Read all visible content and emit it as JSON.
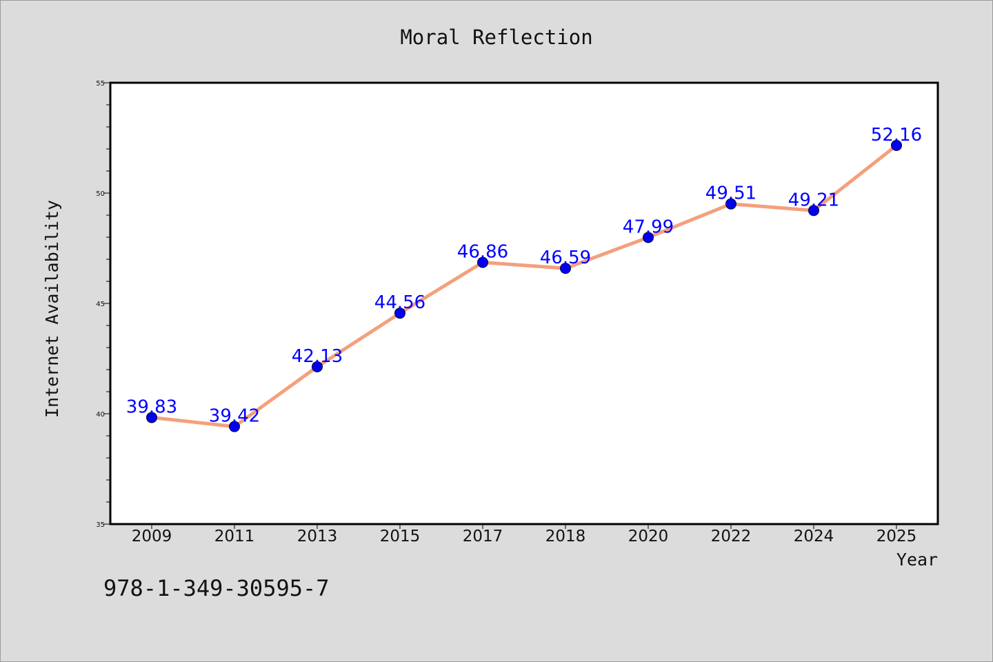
{
  "chart_data": {
    "type": "line",
    "title": "Moral Reflection",
    "xlabel": "Year",
    "ylabel": "Internet Availability",
    "categories": [
      "2009",
      "2011",
      "2013",
      "2015",
      "2017",
      "2018",
      "2020",
      "2022",
      "2024",
      "2025"
    ],
    "series": [
      {
        "values": [
          39.83,
          39.42,
          42.13,
          44.56,
          46.86,
          46.59,
          47.99,
          49.51,
          49.21,
          52.16
        ],
        "line_color": "#f4a07c",
        "marker_color": "#0000ee"
      }
    ],
    "data_labels": [
      "39.83",
      "39.42",
      "42.13",
      "44.56",
      "46.86",
      "46.59",
      "47.99",
      "49.51",
      "49.21",
      "52.16"
    ],
    "ylim": [
      35,
      55
    ],
    "yticks": [
      "35",
      "40",
      "45",
      "50",
      "55"
    ],
    "grid": false,
    "label_color": "#0000ff"
  },
  "footer": {
    "isbn": "978-1-349-30595-7"
  },
  "colors": {
    "background": "#dcdcdc",
    "plot_background": "#ffffff"
  }
}
